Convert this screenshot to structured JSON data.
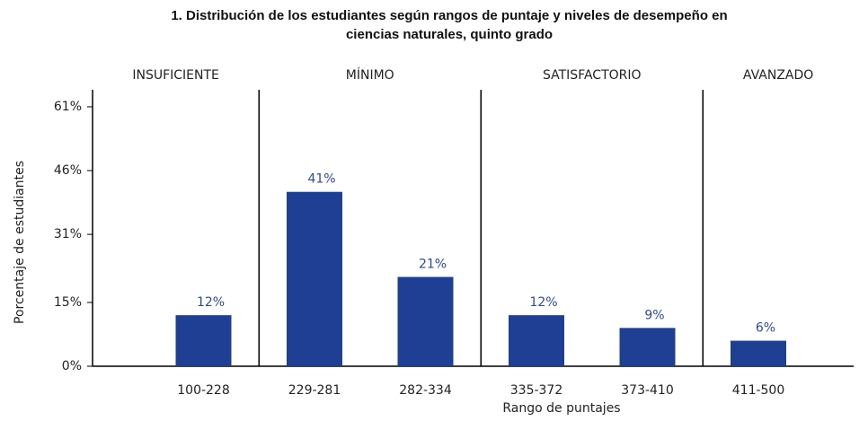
{
  "chart_data": {
    "type": "bar",
    "title": [
      "1. Distribución de los estudiantes según rangos de puntaje y niveles de desempeño en",
      "ciencias naturales, quinto grado"
    ],
    "levels": [
      "INSUFICIENTE",
      "MÍNIMO",
      "SATISFACTORIO",
      "AVANZADO"
    ],
    "categories": [
      "100-228",
      "229-281",
      "282-334",
      "335-372",
      "373-410",
      "411-500"
    ],
    "values": [
      12,
      41,
      21,
      12,
      9,
      6
    ],
    "value_labels": [
      "12%",
      "41%",
      "21%",
      "12%",
      "9%",
      "6%"
    ],
    "color": "#1f3f94",
    "ylim": [
      0,
      65
    ],
    "yticks": [
      {
        "value": 0,
        "label": "0%"
      },
      {
        "value": 15,
        "label": "15%"
      },
      {
        "value": 31,
        "label": "31%"
      },
      {
        "value": 46,
        "label": "46%"
      },
      {
        "value": 61,
        "label": "61%"
      }
    ],
    "xlabel": "Rango de puntajes",
    "ylabel": "Porcentaje de estudiantes"
  }
}
